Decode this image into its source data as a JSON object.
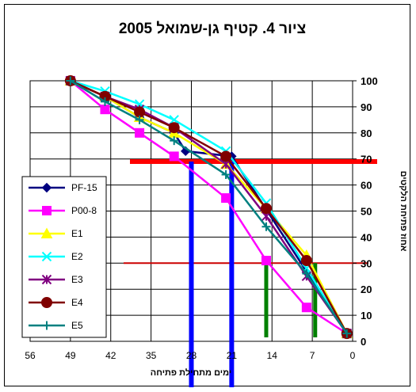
{
  "chart_data": {
    "type": "line",
    "title": "ציור 4. קטיף גן-שמואל 2005",
    "xlabel": "ימים מתחילת פתיחה",
    "ylabel": "אחוז פתיחת הלקטים",
    "x_ticks": [
      56,
      49,
      42,
      35,
      28,
      21,
      14,
      7,
      0
    ],
    "y_ticks": [
      0,
      10,
      20,
      30,
      40,
      50,
      60,
      70,
      80,
      90,
      100
    ],
    "xlim": [
      56,
      0
    ],
    "ylim": [
      0,
      100
    ],
    "x_reversed": true,
    "grid": true,
    "legend_position": "left",
    "series": [
      {
        "name": "PF-15",
        "color": "#000080",
        "marker": "diamond",
        "x": [
          49,
          43,
          37,
          31,
          29,
          21,
          1
        ],
        "y": [
          100,
          94,
          86,
          80,
          73,
          71,
          3
        ]
      },
      {
        "name": "P00-8",
        "color": "#ff00ff",
        "marker": "square",
        "x": [
          49,
          43,
          37,
          31,
          22,
          15,
          8,
          1
        ],
        "y": [
          100,
          89,
          80,
          71,
          55,
          31,
          13,
          3
        ]
      },
      {
        "name": "E1",
        "color": "#ffff00",
        "marker": "triangle",
        "x": [
          49,
          43,
          37,
          31,
          22,
          15,
          8,
          1
        ],
        "y": [
          100,
          94,
          86,
          80,
          68,
          51,
          33,
          3
        ]
      },
      {
        "name": "E2",
        "color": "#00ffff",
        "marker": "x",
        "x": [
          49,
          43,
          37,
          31,
          22,
          15,
          8,
          1
        ],
        "y": [
          100,
          96,
          91,
          85,
          73,
          53,
          28,
          3
        ]
      },
      {
        "name": "E3",
        "color": "#800080",
        "marker": "star",
        "x": [
          49,
          43,
          37,
          31,
          22,
          15,
          8,
          1
        ],
        "y": [
          100,
          94,
          89,
          82,
          68,
          48,
          25,
          3
        ]
      },
      {
        "name": "E4",
        "color": "#800000",
        "marker": "circle",
        "x": [
          49,
          43,
          37,
          31,
          22,
          15,
          8,
          1
        ],
        "y": [
          100,
          94,
          88,
          82,
          71,
          51,
          31,
          3
        ]
      },
      {
        "name": "E5",
        "color": "#008080",
        "marker": "plus",
        "x": [
          49,
          43,
          37,
          31,
          22,
          15,
          8,
          1
        ],
        "y": [
          100,
          92,
          85,
          77,
          64,
          44,
          26,
          3
        ]
      }
    ],
    "reference_lines": [
      {
        "orientation": "horizontal",
        "y": 69,
        "color": "#ff0000"
      },
      {
        "orientation": "horizontal",
        "y": 30,
        "color": "#cc0000"
      },
      {
        "orientation": "vertical",
        "x": 28,
        "color": "#0000ff"
      },
      {
        "orientation": "vertical",
        "x": 21,
        "color": "#0000ff"
      },
      {
        "orientation": "vertical",
        "x": 15,
        "color": "#008000"
      },
      {
        "orientation": "vertical",
        "x": 6.5,
        "color": "#008000"
      }
    ]
  }
}
